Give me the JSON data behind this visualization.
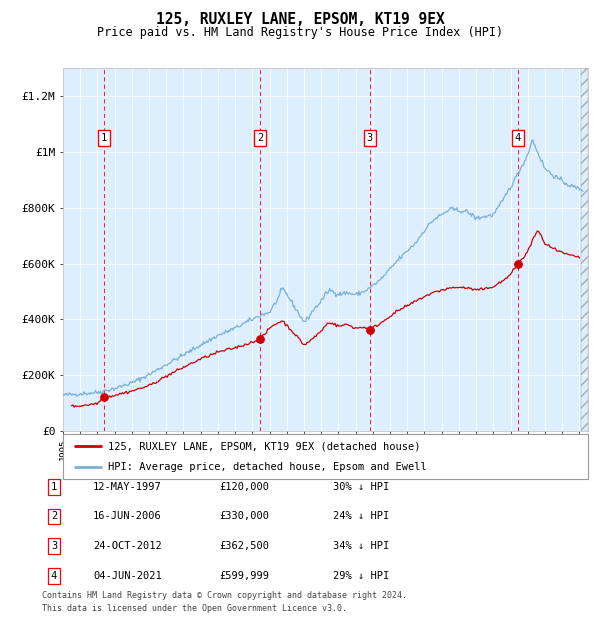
{
  "title": "125, RUXLEY LANE, EPSOM, KT19 9EX",
  "subtitle": "Price paid vs. HM Land Registry's House Price Index (HPI)",
  "ylabel_ticks": [
    "£0",
    "£200K",
    "£400K",
    "£600K",
    "£800K",
    "£1M",
    "£1.2M"
  ],
  "ytick_values": [
    0,
    200000,
    400000,
    600000,
    800000,
    1000000,
    1200000
  ],
  "ylim": [
    0,
    1300000
  ],
  "xlim_start": 1995.0,
  "xlim_end": 2025.5,
  "sales": [
    {
      "num": 1,
      "date_str": "12-MAY-1997",
      "year": 1997.37,
      "price": 120000,
      "pct": "30%",
      "label": "1"
    },
    {
      "num": 2,
      "date_str": "16-JUN-2006",
      "year": 2006.46,
      "price": 330000,
      "pct": "24%",
      "label": "2"
    },
    {
      "num": 3,
      "date_str": "24-OCT-2012",
      "year": 2012.82,
      "price": 362500,
      "pct": "34%",
      "label": "3"
    },
    {
      "num": 4,
      "date_str": "04-JUN-2021",
      "year": 2021.42,
      "price": 599999,
      "pct": "29%",
      "label": "4"
    }
  ],
  "legend1_label": "125, RUXLEY LANE, EPSOM, KT19 9EX (detached house)",
  "legend2_label": "HPI: Average price, detached house, Epsom and Ewell",
  "red_color": "#cc0000",
  "blue_color": "#7ab0d4",
  "bg_color": "#ddeeff",
  "footer_line1": "Contains HM Land Registry data © Crown copyright and database right 2024.",
  "footer_line2": "This data is licensed under the Open Government Licence v3.0.",
  "table_rows": [
    {
      "num": "1",
      "date": "12-MAY-1997",
      "price": "£120,000",
      "pct": "30% ↓ HPI"
    },
    {
      "num": "2",
      "date": "16-JUN-2006",
      "price": "£330,000",
      "pct": "24% ↓ HPI"
    },
    {
      "num": "3",
      "date": "24-OCT-2012",
      "price": "£362,500",
      "pct": "34% ↓ HPI"
    },
    {
      "num": "4",
      "date": "04-JUN-2021",
      "price": "£599,999",
      "pct": "29% ↓ HPI"
    }
  ]
}
